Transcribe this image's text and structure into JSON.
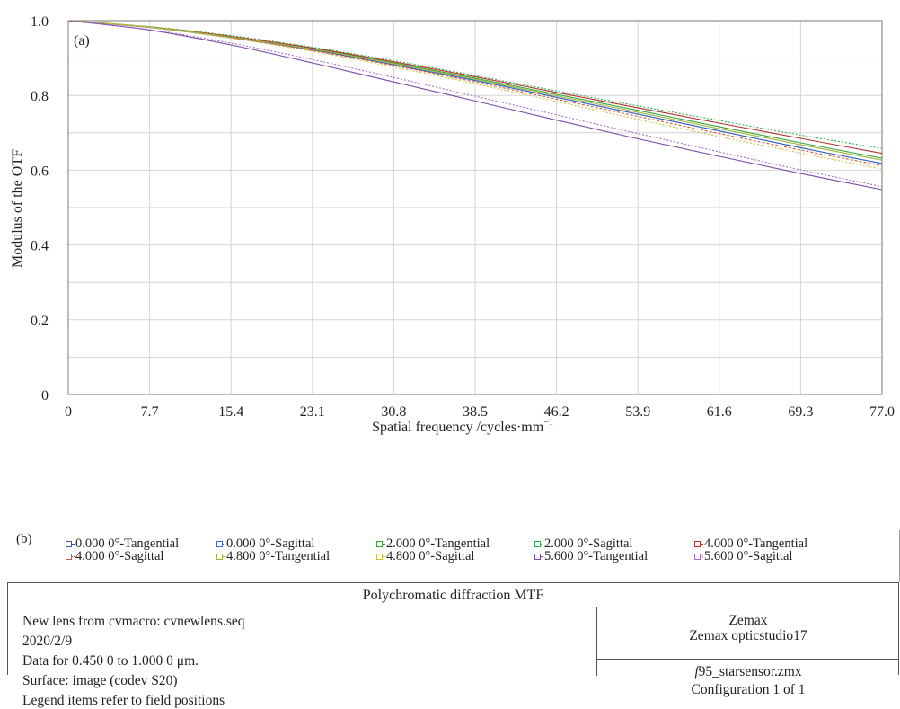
{
  "chart_data": {
    "type": "line",
    "panel_label": "(a)",
    "xlabel": "Spatial frequency /cycles·mm",
    "xlabel_sup": "−1",
    "ylabel": "Modulus of the OTF",
    "xlim": [
      0,
      77.0
    ],
    "ylim": [
      0,
      1.0
    ],
    "x_ticks": [
      "0",
      "7.7",
      "15.4",
      "23.1",
      "30.8",
      "38.5",
      "46.2",
      "53.9",
      "61.6",
      "69.3",
      "77.0"
    ],
    "y_ticks": [
      "0",
      "0.2",
      "0.4",
      "0.6",
      "0.8",
      "1.0"
    ],
    "grid": true,
    "x": [
      0,
      7.7,
      15.4,
      23.1,
      30.8,
      38.5,
      46.2,
      53.9,
      61.6,
      69.3,
      77.0
    ],
    "series": [
      {
        "name": "0.000 0°-Tangential",
        "color": "#2a57b3",
        "dash": "",
        "values": [
          1.0,
          0.982,
          0.955,
          0.922,
          0.882,
          0.84,
          0.795,
          0.75,
          0.705,
          0.66,
          0.618
        ]
      },
      {
        "name": "0.000 0°-Sagittal",
        "color": "#3a6bd0",
        "dash": "3,2",
        "values": [
          1.0,
          0.982,
          0.955,
          0.922,
          0.882,
          0.84,
          0.795,
          0.75,
          0.705,
          0.66,
          0.618
        ]
      },
      {
        "name": "2.000 0°-Tangential",
        "color": "#3aa53a",
        "dash": "",
        "values": [
          1.0,
          0.983,
          0.957,
          0.925,
          0.887,
          0.846,
          0.803,
          0.76,
          0.716,
          0.673,
          0.632
        ]
      },
      {
        "name": "2.000 0°-Sagittal",
        "color": "#36b050",
        "dash": "2,2",
        "values": [
          1.0,
          0.984,
          0.96,
          0.929,
          0.893,
          0.853,
          0.812,
          0.772,
          0.733,
          0.694,
          0.658
        ]
      },
      {
        "name": "4.000 0°-Tangential",
        "color": "#b3322e",
        "dash": "",
        "values": [
          1.0,
          0.983,
          0.958,
          0.927,
          0.89,
          0.85,
          0.808,
          0.767,
          0.726,
          0.685,
          0.645
        ]
      },
      {
        "name": "4.000 0°-Sagittal",
        "color": "#d45a3a",
        "dash": "3,2",
        "values": [
          1.0,
          0.982,
          0.954,
          0.92,
          0.88,
          0.836,
          0.79,
          0.744,
          0.698,
          0.654,
          0.612
        ]
      },
      {
        "name": "4.800 0°-Tangential",
        "color": "#9fb53a",
        "dash": "",
        "values": [
          1.0,
          0.983,
          0.956,
          0.924,
          0.885,
          0.843,
          0.799,
          0.755,
          0.711,
          0.668,
          0.627
        ]
      },
      {
        "name": "4.800 0°-Sagittal",
        "color": "#c7c23a",
        "dash": "2,2",
        "values": [
          1.0,
          0.982,
          0.953,
          0.918,
          0.876,
          0.831,
          0.784,
          0.736,
          0.69,
          0.646,
          0.603
        ]
      },
      {
        "name": "5.600 0°-Tangential",
        "color": "#7a4aa8",
        "dash": "",
        "values": [
          1.0,
          0.975,
          0.935,
          0.887,
          0.836,
          0.785,
          0.734,
          0.684,
          0.637,
          0.591,
          0.548
        ]
      },
      {
        "name": "5.600 0°-Sagittal",
        "color": "#a86ad0",
        "dash": "2,2",
        "values": [
          1.0,
          0.976,
          0.94,
          0.896,
          0.848,
          0.798,
          0.748,
          0.698,
          0.649,
          0.601,
          0.556
        ]
      }
    ]
  },
  "panel_b": {
    "label": "(b)",
    "table_title": "Polychromatic diffraction MTF",
    "left_lines": [
      "New lens from cvmacro: cvnewlens.seq",
      "2020/2/9",
      "Data for 0.450 0 to 1.000 0 μm.",
      "Surface: image (codev S20)",
      "Legend items refer to field positions"
    ],
    "right_top_line1": "Zemax",
    "right_top_line2": "Zemax opticstudio17",
    "file_f": "f",
    "file_rest": "95_starsensor.zmx",
    "configuration": "Configuration 1 of 1"
  }
}
